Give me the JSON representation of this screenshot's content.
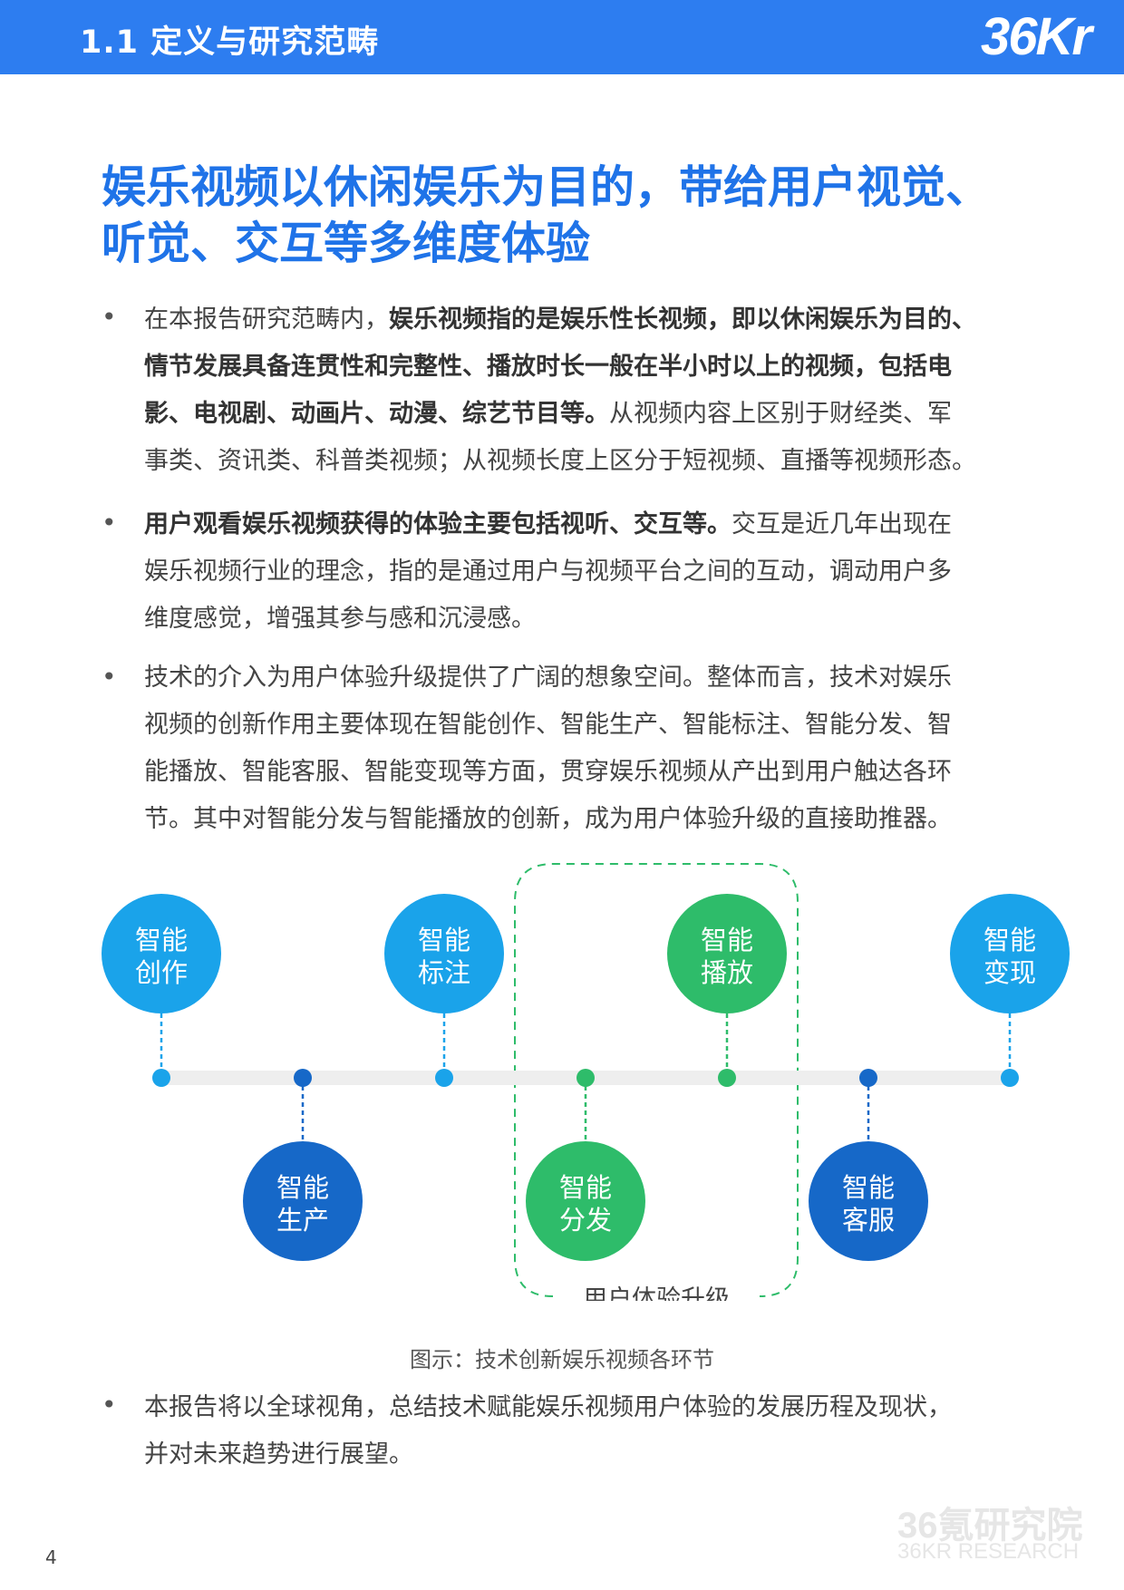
{
  "header": {
    "section_title": "1.1 定义与研究范畴",
    "logo": "36Kr"
  },
  "heading": {
    "line1": "娱乐视频以休闲娱乐为目的，带给用户视觉、",
    "line2": "听觉、交互等多维度体验"
  },
  "bullet_symbol": "•",
  "paragraphs": [
    {
      "lines": [
        [
          {
            "t": "在本报告研究范畴内，",
            "b": false
          },
          {
            "t": "娱乐视频指的是娱乐性长视频，即以休闲娱乐为目的、",
            "b": true
          }
        ],
        [
          {
            "t": "情节发展具备连贯性和完整性、播放时长一般在半小时以上的视频，包括电",
            "b": true
          }
        ],
        [
          {
            "t": "影、电视剧、动画片、动漫、综艺节目等。",
            "b": true
          },
          {
            "t": "从视频内容上区别于财经类、军",
            "b": false
          }
        ],
        [
          {
            "t": "事类、资讯类、科普类视频；从视频长度上区分于短视频、直播等视频形态。",
            "b": false
          }
        ]
      ]
    },
    {
      "lines": [
        [
          {
            "t": "用户观看娱乐视频获得的体验主要包括视听、交互等。",
            "b": true
          },
          {
            "t": "交互是近几年出现在",
            "b": false
          }
        ],
        [
          {
            "t": "娱乐视频行业的理念，指的是通过用户与视频平台之间的互动，调动用户多",
            "b": false
          }
        ],
        [
          {
            "t": "维度感觉，增强其参与感和沉浸感。",
            "b": false
          }
        ]
      ]
    },
    {
      "lines": [
        [
          {
            "t": "技术的介入为用户体验升级提供了广阔的想象空间。整体而言，技术对娱乐",
            "b": false
          }
        ],
        [
          {
            "t": "视频的创新作用主要体现在智能创作、智能生产、智能标注、智能分发、智",
            "b": false
          }
        ],
        [
          {
            "t": "能播放、智能客服、智能变现等方面，贯穿娱乐视频从产出到用户触达各环",
            "b": false
          }
        ],
        [
          {
            "t": "节。其中对智能分发与智能播放的创新，成为用户体验升级的直接助推器。",
            "b": false
          }
        ]
      ]
    },
    {
      "lines": [
        [
          {
            "t": "本报告将以全球视角，总结技术赋能娱乐视频用户体验的发展历程及现状，",
            "b": false
          }
        ],
        [
          {
            "t": "并对未来趋势进行展望。",
            "b": false
          }
        ]
      ]
    }
  ],
  "diagram": {
    "nodes": [
      {
        "line1": "智能",
        "line2": "创作",
        "color": "#1aa3ea"
      },
      {
        "line1": "智能",
        "line2": "生产",
        "color": "#1668c8"
      },
      {
        "line1": "智能",
        "line2": "标注",
        "color": "#1aa3ea"
      },
      {
        "line1": "智能",
        "line2": "分发",
        "color": "#2ebc6a"
      },
      {
        "line1": "智能",
        "line2": "播放",
        "color": "#2ebc6a"
      },
      {
        "line1": "智能",
        "line2": "客服",
        "color": "#1668c8"
      },
      {
        "line1": "智能",
        "line2": "变现",
        "color": "#1aa3ea"
      }
    ],
    "highlight_label": "用户体验升级",
    "highlight_color": "#2ebc6a",
    "track_color": "#eeeeee"
  },
  "caption": "图示：技术创新娱乐视频各环节",
  "page_number": "4",
  "watermark": {
    "line1": "36氪研究院",
    "line2": "36KR RESEARCH"
  }
}
